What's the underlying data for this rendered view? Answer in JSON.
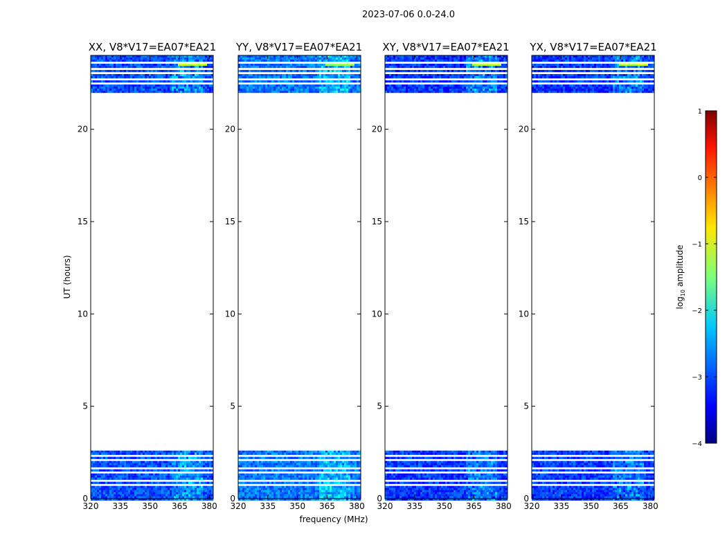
{
  "figure_title": "2023-07-06 0.0-24.0",
  "chart_data": {
    "type": "heatmap",
    "title": "2023-07-06 0.0-24.0",
    "xlabel": "frequency (MHz)",
    "ylabel": "UT (hours)",
    "xlim": [
      320,
      382
    ],
    "ylim": [
      0,
      24
    ],
    "xticks": [
      "320",
      "335",
      "350",
      "365",
      "380"
    ],
    "xtick_values": [
      320,
      335,
      350,
      365,
      380
    ],
    "yticks": [
      "0",
      "5",
      "10",
      "15",
      "20"
    ],
    "ytick_values": [
      0,
      5,
      10,
      15,
      20
    ],
    "data_coverage_hours": [
      [
        0,
        2.6
      ],
      [
        22.0,
        24.0
      ]
    ],
    "blank_row_hours": [
      0.85,
      1.05,
      1.5,
      1.72,
      2.12,
      2.42,
      22.55,
      22.8,
      23.1,
      23.35,
      23.62
    ],
    "panels": [
      {
        "label": "XX, V8*V17=EA07*EA21",
        "baseline_log_amplitude": -3.0,
        "hot_channel_log_amplitude": -1.2
      },
      {
        "label": "YY, V8*V17=EA07*EA21",
        "baseline_log_amplitude": -2.8,
        "hot_channel_log_amplitude": -1.4
      },
      {
        "label": "XY, V8*V17=EA07*EA21",
        "baseline_log_amplitude": -3.1,
        "hot_channel_log_amplitude": -1.2
      },
      {
        "label": "YX, V8*V17=EA07*EA21",
        "baseline_log_amplitude": -3.1,
        "hot_channel_log_amplitude": -1.2
      }
    ],
    "colorbar": {
      "label": "log10 amplitude",
      "label_main": "log",
      "label_sub": "10",
      "label_rest": " amplitude",
      "range": [
        -4,
        1
      ],
      "ticks": [
        "1",
        "0",
        "−1",
        "−2",
        "−3",
        "−4"
      ],
      "tick_values": [
        1,
        0,
        -1,
        -2,
        -3,
        -4
      ],
      "colormap": "jet"
    }
  }
}
